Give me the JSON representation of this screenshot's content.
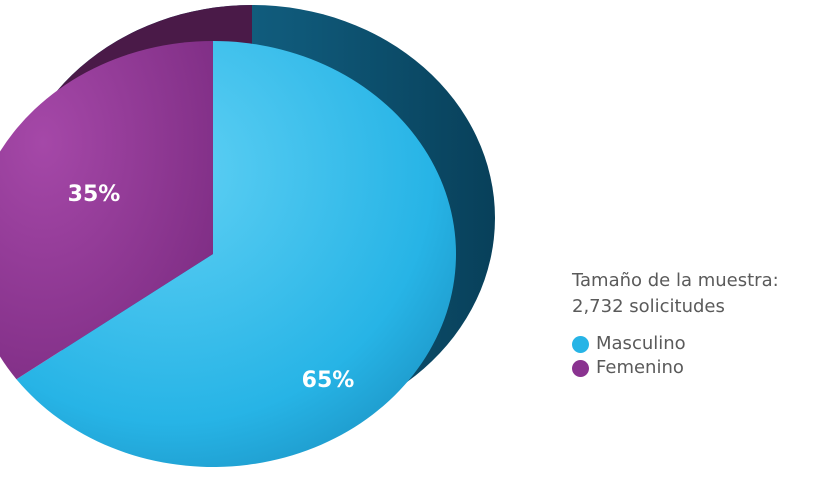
{
  "chart_data": {
    "type": "pie",
    "categories": [
      "Masculino",
      "Femenino"
    ],
    "values": [
      65,
      35
    ],
    "data_labels": [
      "65%",
      "35%"
    ],
    "colors": [
      "#27b4e6",
      "#8a3390"
    ],
    "depth_colors": [
      "#0f5878",
      "#4a1a48"
    ],
    "style": "3d-tilted",
    "legend_placement": "right"
  },
  "legend": {
    "note_line1": "Tamaño de la muestra:",
    "note_line2": "2,732 solicitudes",
    "items": [
      {
        "label": "Masculino",
        "color": "#27b4e6"
      },
      {
        "label": "Femenino",
        "color": "#8a3390"
      }
    ]
  }
}
